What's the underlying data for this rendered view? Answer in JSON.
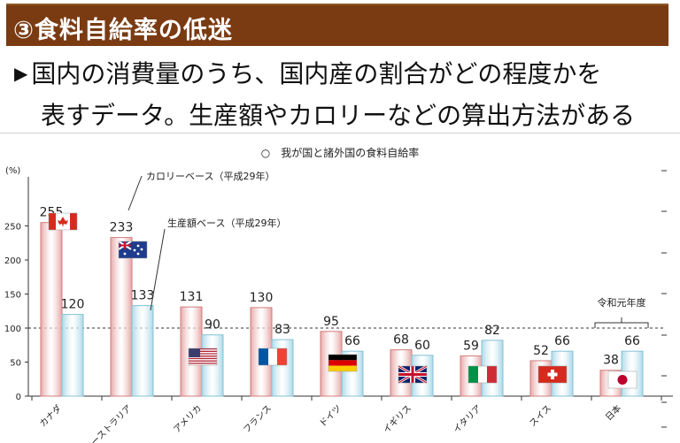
{
  "slide": {
    "heading": "③食料自給率の低迷",
    "bullet_marker": "▶",
    "line1": "国内の消費量のうち、国内産の割合がどの程度かを",
    "line2": "表すデータ。生産額やカロリーなどの算出方法がある"
  },
  "colors": {
    "banner": "#7a3b12",
    "calorie_bar": "#e7a3a3",
    "production_bar": "#a9d8e8"
  },
  "chart_data": {
    "type": "bar",
    "title": "○　我が国と諸外国の食料自給率",
    "y_unit": "(%)",
    "ylim": [
      0,
      300
    ],
    "yticks": [
      0,
      50,
      100,
      150,
      200,
      250
    ],
    "reference_line": 100,
    "categories": [
      "カナダ",
      "オーストラリア",
      "アメリカ",
      "フランス",
      "ドイツ",
      "イギリス",
      "イタリア",
      "スイス",
      "日本"
    ],
    "flags": [
      "canada-flag",
      "australia-flag",
      "usa-flag",
      "france-flag",
      "germany-flag",
      "uk-flag",
      "italy-flag",
      "switzerland-flag",
      "japan-flag"
    ],
    "series": [
      {
        "name": "カロリーベース（平成29年）",
        "values": [
          255,
          233,
          131,
          130,
          95,
          68,
          59,
          52,
          38
        ]
      },
      {
        "name": "生産額ベース（平成29年）",
        "values": [
          120,
          133,
          90,
          83,
          66,
          60,
          82,
          66,
          66
        ]
      }
    ],
    "annotations": {
      "japan_note": "令和元年度"
    },
    "grid": false
  }
}
